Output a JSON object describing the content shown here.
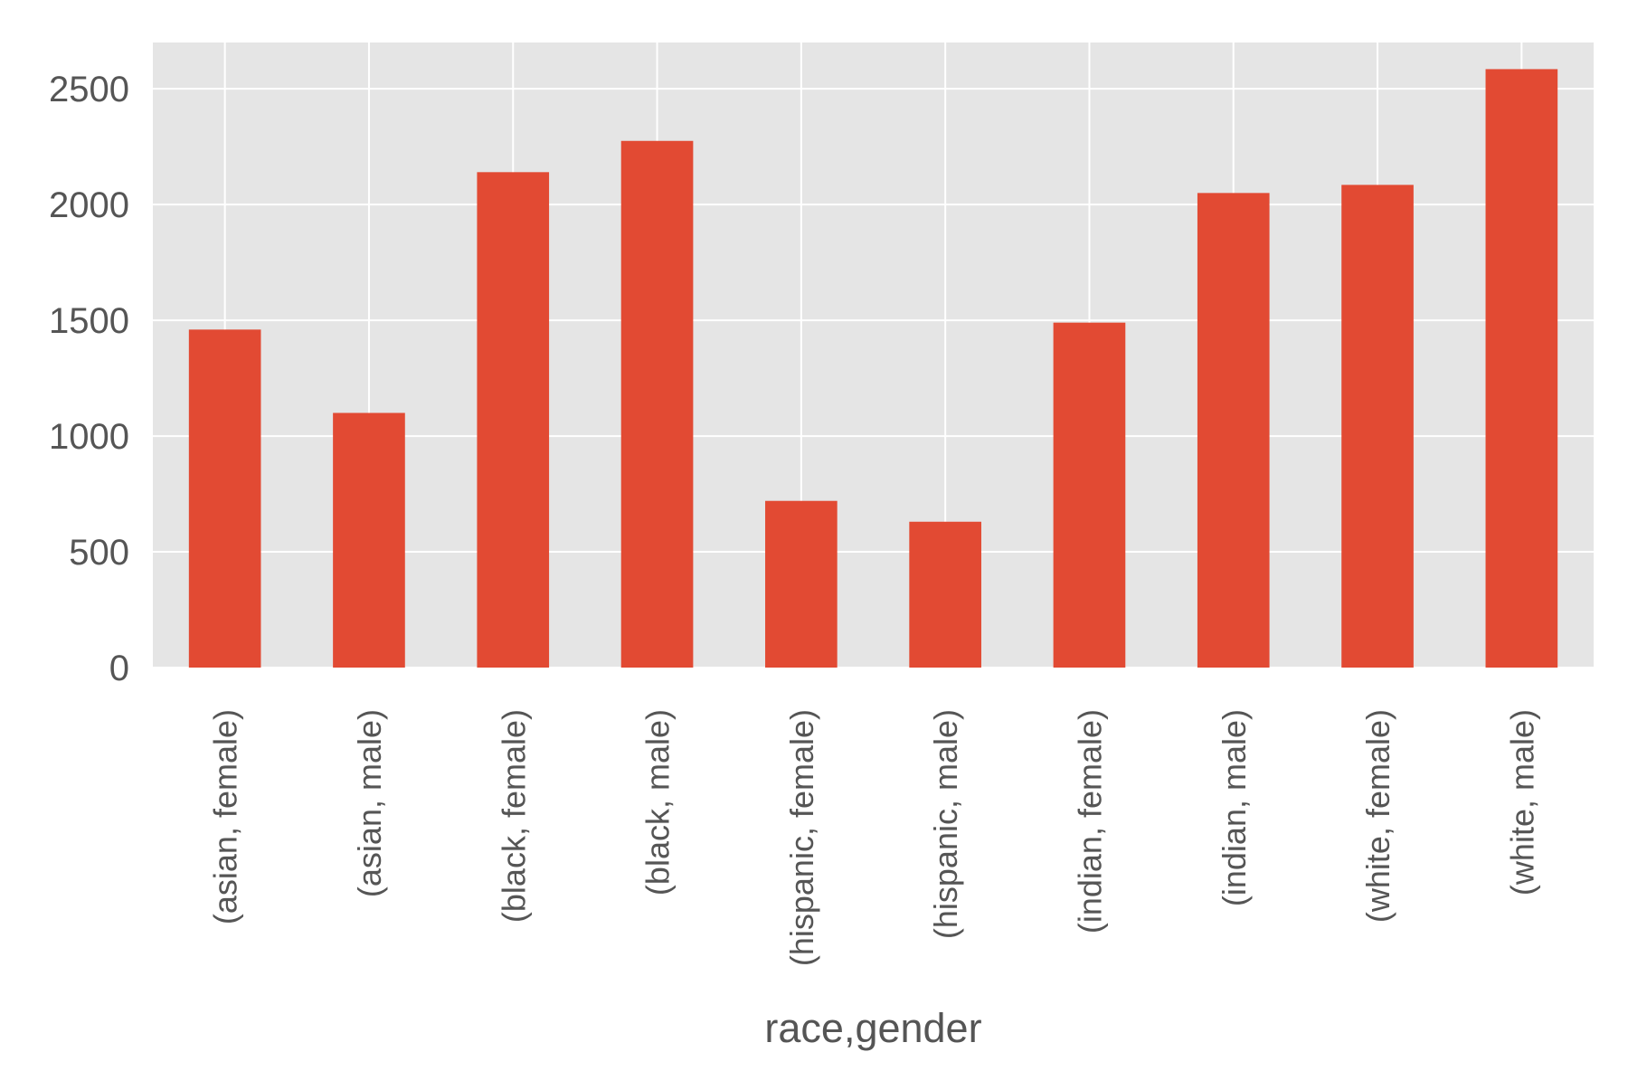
{
  "chart_data": {
    "type": "bar",
    "xlabel": "race,gender",
    "ylabel": "",
    "ylim": [
      0,
      2700
    ],
    "yticks": [
      0,
      500,
      1000,
      1500,
      2000,
      2500
    ],
    "ytick_labels": [
      "0",
      "500",
      "1000",
      "1500",
      "2000",
      "2500"
    ],
    "grid": true,
    "legend": "none",
    "colors": {
      "bar": "#E24A33",
      "plot_background": "#E5E5E5",
      "grid": "#FFFFFF",
      "text": "#555555"
    },
    "categories": [
      "(asian, female)",
      "(asian, male)",
      "(black, female)",
      "(black, male)",
      "(hispanic, female)",
      "(hispanic, male)",
      "(indian, female)",
      "(indian, male)",
      "(white, female)",
      "(white, male)"
    ],
    "values": [
      1460,
      1100,
      2140,
      2275,
      720,
      630,
      1490,
      2050,
      2085,
      2585
    ]
  }
}
